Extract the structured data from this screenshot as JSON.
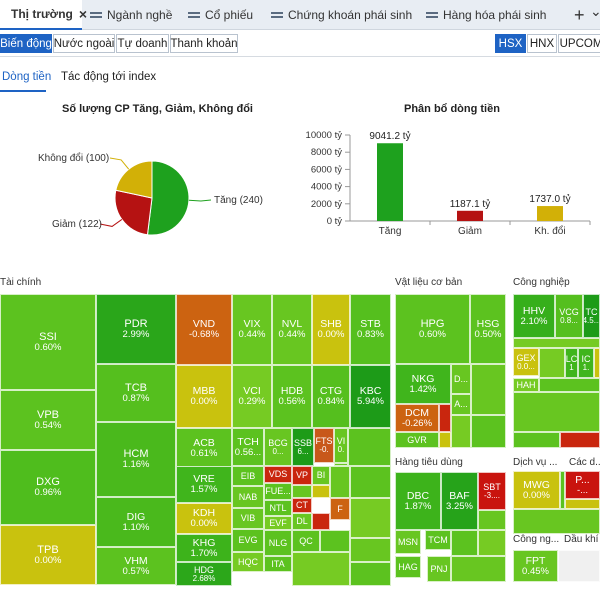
{
  "tabs": [
    {
      "label": "Thị trường",
      "icon": "market-icon",
      "active": true,
      "close": "×"
    },
    {
      "label": "Ngành nghề",
      "icon": "table-icon"
    },
    {
      "label": "Cổ phiếu",
      "icon": "chart-icon"
    },
    {
      "label": "Chứng khoán phái sinh",
      "icon": "derivatives-icon"
    },
    {
      "label": "Hàng hóa phái sinh",
      "icon": "commodity-icon"
    }
  ],
  "tab_add": "+",
  "sub_filters": [
    "Biến động",
    "Nước ngoài",
    "Tự doanh",
    "Thanh khoản"
  ],
  "exchanges": [
    "HSX",
    "HNX",
    "UPCOM"
  ],
  "view_tabs": [
    "Dòng tiền",
    "Tác động tới index"
  ],
  "chart_data": [
    {
      "type": "pie",
      "title": "Số lượng CP Tăng, Giảm, Không đổi",
      "slices": [
        {
          "label": "Tăng",
          "value": 240,
          "color": "#1ea11e"
        },
        {
          "label": "Giảm",
          "value": 122,
          "color": "#b51212"
        },
        {
          "label": "Không đổi",
          "value": 100,
          "color": "#d2b007"
        }
      ],
      "labels": [
        "Tăng (240)",
        "Giảm (122)",
        "Không đổi (100)"
      ]
    },
    {
      "type": "bar",
      "title": "Phân bổ dòng tiền",
      "categories": [
        "Tăng",
        "Giảm",
        "Kh. đổi"
      ],
      "values": [
        9041.2,
        1187.1,
        1737.0
      ],
      "data_labels": [
        "9041.2 tỷ",
        "1187.1 tỷ",
        "1737.0 tỷ"
      ],
      "colors": [
        "#1ea11e",
        "#b51212",
        "#d2b007"
      ],
      "yticks": [
        "10000 tỷ",
        "8000 tỷ",
        "6000 tỷ",
        "4000 tỷ",
        "2000 tỷ",
        "0 tỷ"
      ],
      "ylim": [
        0,
        10000
      ],
      "grid": false
    }
  ],
  "sectors": [
    "Tài chính",
    "Vật liệu cơ bản",
    "Công nghiệp",
    "Hàng tiêu dùng",
    "Dịch vụ ...",
    "Các d...",
    "Công ng...",
    "Dầu khí"
  ],
  "cells": [
    {
      "s": "SSI",
      "v": "0.60%",
      "c": "#5cc21f"
    },
    {
      "s": "VPB",
      "v": "0.54%",
      "c": "#5cc21f"
    },
    {
      "s": "DXG",
      "v": "0.96%",
      "c": "#4fbd1d"
    },
    {
      "s": "TPB",
      "v": "0.00%",
      "c": "#c9c20e"
    },
    {
      "s": "PDR",
      "v": "2.99%",
      "c": "#2aa61a"
    },
    {
      "s": "TCB",
      "v": "0.87%",
      "c": "#55bf1e"
    },
    {
      "s": "HCM",
      "v": "1.16%",
      "c": "#4ab91c"
    },
    {
      "s": "DIG",
      "v": "1.10%",
      "c": "#4ab91c"
    },
    {
      "s": "VHM",
      "v": "0.57%",
      "c": "#5cc21f"
    },
    {
      "s": "VND",
      "v": "-0.68%",
      "c": "#cc6311"
    },
    {
      "s": "VIX",
      "v": "0.44%",
      "c": "#68c621"
    },
    {
      "s": "NVL",
      "v": "0.44%",
      "c": "#68c621"
    },
    {
      "s": "SHB",
      "v": "0.00%",
      "c": "#c9c20e"
    },
    {
      "s": "STB",
      "v": "0.83%",
      "c": "#55bf1e"
    },
    {
      "s": "MBB",
      "v": "0.00%",
      "c": "#c9c20e"
    },
    {
      "s": "VCI",
      "v": "0.29%",
      "c": "#76cb23"
    },
    {
      "s": "HDB",
      "v": "0.56%",
      "c": "#5cc21f"
    },
    {
      "s": "CTG",
      "v": "0.84%",
      "c": "#55bf1e"
    },
    {
      "s": "KBC",
      "v": "5.94%",
      "c": "#1d9b18"
    },
    {
      "s": "ACB",
      "v": "0.61%",
      "c": "#5cc21f"
    },
    {
      "s": "TCH",
      "v": "0.56...",
      "c": "#5cc21f"
    },
    {
      "s": "BCG",
      "v": "0...",
      "c": "#68c621"
    },
    {
      "s": "SSB",
      "v": "6...",
      "c": "#1d9b18"
    },
    {
      "s": "FTS",
      "v": "-0.",
      "c": "#c8581a"
    },
    {
      "s": "VI",
      "v": "0.",
      "c": "#68c621"
    },
    {
      "s": "VRE",
      "v": "1.57%",
      "c": "#40b51c"
    },
    {
      "s": "KDH",
      "v": "0.00%",
      "c": "#c9c20e"
    },
    {
      "s": "KHG",
      "v": "1.70%",
      "c": "#3db31b"
    },
    {
      "s": "HDG",
      "v": "2.68%",
      "c": "#2ca71a"
    },
    {
      "s": "EIB",
      "v": "",
      "c": "#5cc21f"
    },
    {
      "s": "NAB",
      "v": "",
      "c": "#68c621"
    },
    {
      "s": "VIB",
      "v": "",
      "c": "#68c621"
    },
    {
      "s": "EVG",
      "v": "",
      "c": "#5cc21f"
    },
    {
      "s": "HQC",
      "v": "",
      "c": "#76cb23"
    },
    {
      "s": "VDS",
      "v": "",
      "c": "#c9260e"
    },
    {
      "s": "FUE...",
      "v": "",
      "c": "#5cc21f"
    },
    {
      "s": "NTL",
      "v": "",
      "c": "#5cc21f"
    },
    {
      "s": "EVF",
      "v": "",
      "c": "#76cb23"
    },
    {
      "s": "NLG",
      "v": "",
      "c": "#5cc21f"
    },
    {
      "s": "ITA",
      "v": "",
      "c": "#5cc21f"
    },
    {
      "s": "VP",
      "v": "",
      "c": "#c9260e"
    },
    {
      "s": "BI",
      "v": "",
      "c": "#68c621"
    },
    {
      "s": "CT",
      "v": "",
      "c": "#c9260e"
    },
    {
      "s": "F",
      "v": "",
      "c": "#cc6311"
    },
    {
      "s": "DL",
      "v": "",
      "c": "#68c621"
    },
    {
      "s": "QC",
      "v": "",
      "c": "#5cc21f"
    },
    {
      "s": "HPG",
      "v": "0.60%",
      "c": "#5cc21f"
    },
    {
      "s": "HSG",
      "v": "0.50%",
      "c": "#5cc21f"
    },
    {
      "s": "NKG",
      "v": "1.42%",
      "c": "#40b51c"
    },
    {
      "s": "D...",
      "v": "",
      "c": "#68c621"
    },
    {
      "s": "A...",
      "v": "",
      "c": "#68c621"
    },
    {
      "s": "DCM",
      "v": "-0.26%",
      "c": "#cc6311"
    },
    {
      "s": "GVR",
      "v": "",
      "c": "#5cc21f"
    },
    {
      "s": "HHV",
      "v": "2.10%",
      "c": "#36af1b"
    },
    {
      "s": "VCG",
      "v": "0.8...",
      "c": "#55bf1e"
    },
    {
      "s": "TC",
      "v": "4.5...",
      "c": "#1d9b18"
    },
    {
      "s": "GEX",
      "v": "0.0...",
      "c": "#c9c20e"
    },
    {
      "s": "LC",
      "v": "1",
      "c": "#40b51c"
    },
    {
      "s": "IC",
      "v": "1.",
      "c": "#40b51c"
    },
    {
      "s": "HAH",
      "v": "",
      "c": "#76cb23"
    },
    {
      "s": "DBC",
      "v": "1.87%",
      "c": "#3db31b"
    },
    {
      "s": "BAF",
      "v": "3.25%",
      "c": "#26a31a"
    },
    {
      "s": "SBT",
      "v": "-3....",
      "c": "#c9140e"
    },
    {
      "s": "MSN",
      "v": "",
      "c": "#68c621"
    },
    {
      "s": "TCM",
      "v": "",
      "c": "#5cc21f"
    },
    {
      "s": "HAG",
      "v": "",
      "c": "#5cc21f"
    },
    {
      "s": "PNJ",
      "v": "",
      "c": "#68c621"
    },
    {
      "s": "MWG",
      "v": "0.00%",
      "c": "#c9c20e"
    },
    {
      "s": "P...",
      "v": "-...",
      "c": "#c9140e"
    },
    {
      "s": "FPT",
      "v": "0.45%",
      "c": "#68c621"
    }
  ]
}
